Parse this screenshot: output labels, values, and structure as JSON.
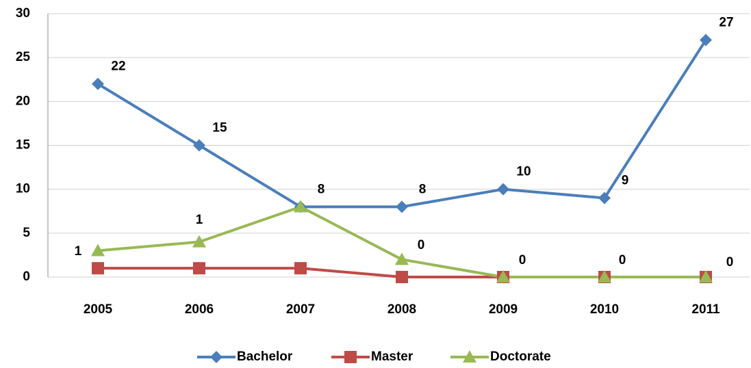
{
  "chart_data": {
    "type": "line",
    "categories": [
      "2005",
      "2006",
      "2007",
      "2008",
      "2009",
      "2010",
      "2011"
    ],
    "series": [
      {
        "name": "Bachelor",
        "color": "#4a7ebb",
        "marker": "diamond",
        "values": [
          22,
          15,
          8,
          8,
          10,
          9,
          27
        ]
      },
      {
        "name": "Master",
        "color": "#be4b48",
        "marker": "square",
        "values": [
          1,
          1,
          1,
          0,
          0,
          0,
          0
        ],
        "value_labels": [
          "1",
          "1",
          null,
          "0",
          "0",
          "0",
          "0"
        ]
      },
      {
        "name": "Doctorate",
        "color": "#98b954",
        "marker": "triangle",
        "values": [
          3,
          4,
          8,
          2,
          0,
          0,
          0
        ]
      }
    ],
    "ylim": [
      0,
      30
    ],
    "yticks": [
      0,
      5,
      10,
      15,
      20,
      25,
      30
    ],
    "grid": true,
    "legend": "bottom"
  }
}
